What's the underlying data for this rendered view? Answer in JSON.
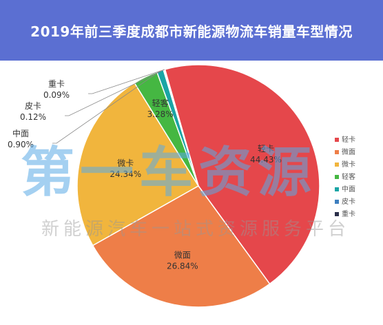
{
  "header": {
    "title": "2019年前三季度成都市新能源物流车销量车型情况"
  },
  "watermark": {
    "main": "第一车资源",
    "sub": "新能源汽车一站式资源服务平台"
  },
  "chart_data": {
    "type": "pie",
    "title": "2019年前三季度成都市新能源物流车销量车型情况",
    "slices": [
      {
        "label": "轻卡",
        "value": 44.43,
        "value_text": "44.43%",
        "color": "#e5474b"
      },
      {
        "label": "微面",
        "value": 26.84,
        "value_text": "26.84%",
        "color": "#ee7e48"
      },
      {
        "label": "微卡",
        "value": 24.34,
        "value_text": "24.34%",
        "color": "#f1b53d"
      },
      {
        "label": "轻客",
        "value": 3.28,
        "value_text": "3.28%",
        "color": "#45b742"
      },
      {
        "label": "中面",
        "value": 0.9,
        "value_text": "0.90%",
        "color": "#1aa5a5"
      },
      {
        "label": "皮卡",
        "value": 0.12,
        "value_text": "0.12%",
        "color": "#3e7fbf"
      },
      {
        "label": "重卡",
        "value": 0.09,
        "value_text": "0.09%",
        "color": "#2b2f4a"
      }
    ],
    "legend": {
      "placement": "right"
    }
  }
}
